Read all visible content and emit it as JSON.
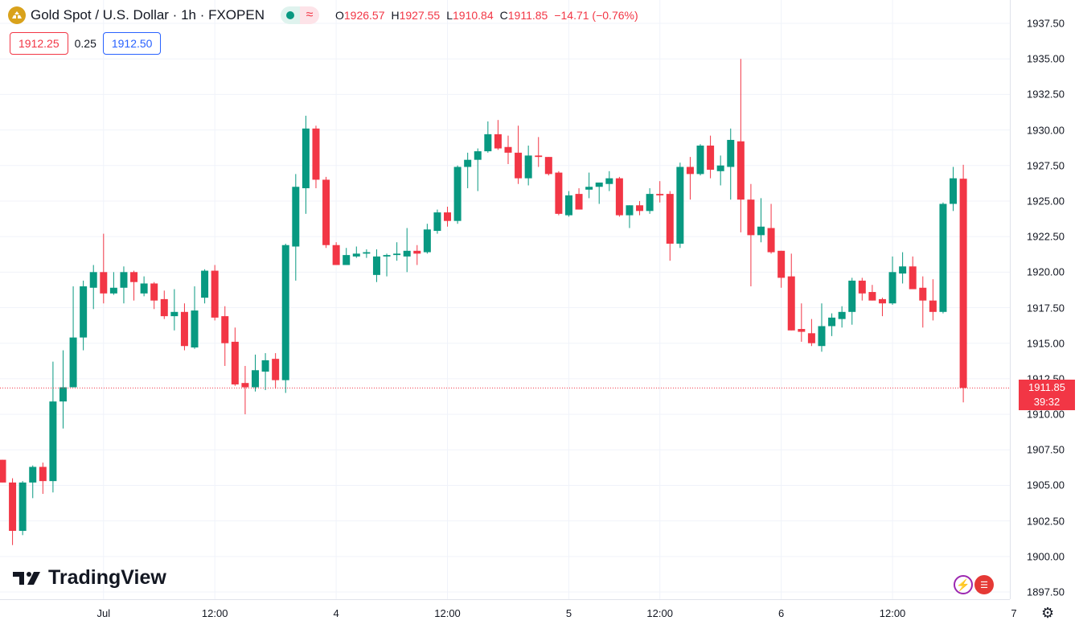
{
  "header": {
    "title": "Gold Spot / U.S. Dollar · 1h · FXOPEN",
    "status_dot_color": "#089981",
    "badge_symbol": "≈",
    "ohlc": {
      "o_label": "O",
      "o": "1926.57",
      "h_label": "H",
      "h": "1927.55",
      "l_label": "L",
      "l": "1910.84",
      "c_label": "C",
      "c": "1911.85",
      "change": "−14.71 (−0.76%)"
    }
  },
  "quote": {
    "bid": "1912.25",
    "spread": "0.25",
    "ask": "1912.50"
  },
  "last_price": {
    "price": "1911.85",
    "countdown": "39:32"
  },
  "brand": {
    "name": "TradingView"
  },
  "colors": {
    "up": "#089981",
    "down": "#f23645",
    "ask": "#2962ff",
    "grid": "#f0f3fa"
  },
  "chart_data": {
    "type": "candlestick",
    "title": "Gold Spot / U.S. Dollar · 1h · FXOPEN",
    "ylim": [
      1897.5,
      1937.5
    ],
    "y_ticks": [
      "1897.50",
      "1900.00",
      "1902.50",
      "1905.00",
      "1907.50",
      "1910.00",
      "1912.50",
      "1915.00",
      "1917.50",
      "1920.00",
      "1922.50",
      "1925.00",
      "1927.50",
      "1930.00",
      "1932.50",
      "1935.00",
      "1937.50"
    ],
    "x_ticks": [
      {
        "label": "Jul",
        "index": 10
      },
      {
        "label": "12:00",
        "index": 21
      },
      {
        "label": "4",
        "index": 33
      },
      {
        "label": "12:00",
        "index": 44
      },
      {
        "label": "5",
        "index": 56
      },
      {
        "label": "12:00",
        "index": 65
      },
      {
        "label": "6",
        "index": 77
      },
      {
        "label": "12:00",
        "index": 88
      },
      {
        "label": "7",
        "index": 100
      }
    ],
    "last_price": 1911.85,
    "candles_ohlc": [
      [
        1906.8,
        1906.8,
        1905.2,
        1905.2
      ],
      [
        1905.2,
        1905.5,
        1900.8,
        1901.8
      ],
      [
        1901.8,
        1905.3,
        1901.5,
        1905.2
      ],
      [
        1905.2,
        1906.4,
        1904.1,
        1906.3
      ],
      [
        1906.3,
        1906.6,
        1904.4,
        1905.3
      ],
      [
        1905.3,
        1913.7,
        1904.5,
        1910.9
      ],
      [
        1910.9,
        1914.5,
        1909.0,
        1911.9
      ],
      [
        1911.9,
        1919.0,
        1911.9,
        1915.4
      ],
      [
        1915.4,
        1919.4,
        1914.5,
        1919.0
      ],
      [
        1918.9,
        1920.5,
        1917.4,
        1920.0
      ],
      [
        1920.0,
        1922.7,
        1917.8,
        1918.5
      ],
      [
        1918.5,
        1920.0,
        1918.4,
        1918.9
      ],
      [
        1918.9,
        1920.4,
        1917.8,
        1920.0
      ],
      [
        1920.0,
        1920.1,
        1918.0,
        1919.3
      ],
      [
        1918.5,
        1919.7,
        1918.3,
        1919.2
      ],
      [
        1919.2,
        1919.3,
        1917.4,
        1918.0
      ],
      [
        1918.1,
        1918.7,
        1916.7,
        1916.9
      ],
      [
        1916.9,
        1918.8,
        1915.9,
        1917.2
      ],
      [
        1917.2,
        1917.8,
        1914.5,
        1914.8
      ],
      [
        1914.7,
        1919.0,
        1914.6,
        1917.3
      ],
      [
        1918.2,
        1920.2,
        1917.8,
        1920.1
      ],
      [
        1920.1,
        1920.5,
        1916.6,
        1916.8
      ],
      [
        1916.9,
        1917.6,
        1913.4,
        1915.0
      ],
      [
        1915.1,
        1916.1,
        1912.0,
        1912.1
      ],
      [
        1912.2,
        1913.4,
        1910.0,
        1911.9
      ],
      [
        1911.9,
        1914.2,
        1911.6,
        1913.1
      ],
      [
        1913.0,
        1914.3,
        1911.7,
        1913.8
      ],
      [
        1913.9,
        1914.3,
        1911.8,
        1912.4
      ],
      [
        1912.4,
        1922.0,
        1911.5,
        1921.9
      ],
      [
        1921.8,
        1926.9,
        1919.4,
        1926.0
      ],
      [
        1925.9,
        1931.0,
        1924.1,
        1930.1
      ],
      [
        1930.1,
        1930.3,
        1925.9,
        1926.5
      ],
      [
        1926.5,
        1926.7,
        1921.7,
        1921.9
      ],
      [
        1921.9,
        1922.1,
        1920.5,
        1920.5
      ],
      [
        1920.5,
        1921.7,
        1920.5,
        1921.2
      ],
      [
        1921.1,
        1921.8,
        1921.0,
        1921.3
      ],
      [
        1921.3,
        1921.6,
        1921.0,
        1921.4
      ],
      [
        1919.8,
        1921.6,
        1919.3,
        1921.1
      ],
      [
        1921.1,
        1921.3,
        1919.7,
        1921.2
      ],
      [
        1921.2,
        1922.1,
        1920.8,
        1921.3
      ],
      [
        1921.1,
        1923.1,
        1920.0,
        1921.5
      ],
      [
        1921.5,
        1921.9,
        1920.5,
        1921.3
      ],
      [
        1921.4,
        1923.4,
        1921.3,
        1923.0
      ],
      [
        1922.9,
        1924.4,
        1922.7,
        1924.2
      ],
      [
        1924.2,
        1924.6,
        1923.2,
        1923.6
      ],
      [
        1923.6,
        1927.5,
        1923.4,
        1927.4
      ],
      [
        1927.4,
        1928.4,
        1925.9,
        1927.9
      ],
      [
        1927.9,
        1928.7,
        1925.7,
        1928.5
      ],
      [
        1928.5,
        1930.6,
        1928.4,
        1929.7
      ],
      [
        1929.7,
        1930.7,
        1928.6,
        1928.7
      ],
      [
        1928.8,
        1929.6,
        1927.6,
        1928.4
      ],
      [
        1928.4,
        1930.3,
        1926.2,
        1926.6
      ],
      [
        1926.6,
        1928.9,
        1926.1,
        1928.2
      ],
      [
        1928.2,
        1929.5,
        1927.4,
        1928.1
      ],
      [
        1928.1,
        1928.1,
        1926.8,
        1926.9
      ],
      [
        1927.0,
        1927.1,
        1924.0,
        1924.1
      ],
      [
        1924.0,
        1925.7,
        1923.9,
        1925.4
      ],
      [
        1925.5,
        1925.9,
        1924.4,
        1924.4
      ],
      [
        1925.8,
        1927.0,
        1925.2,
        1926.0
      ],
      [
        1926.0,
        1926.3,
        1924.8,
        1926.3
      ],
      [
        1926.2,
        1927.1,
        1925.7,
        1926.6
      ],
      [
        1926.6,
        1926.7,
        1923.9,
        1924.0
      ],
      [
        1924.0,
        1924.7,
        1923.1,
        1924.7
      ],
      [
        1924.7,
        1925.0,
        1924.0,
        1924.3
      ],
      [
        1924.3,
        1925.9,
        1924.1,
        1925.5
      ],
      [
        1925.5,
        1926.4,
        1924.9,
        1925.4
      ],
      [
        1925.5,
        1925.7,
        1920.8,
        1922.0
      ],
      [
        1922.0,
        1927.7,
        1921.7,
        1927.4
      ],
      [
        1927.4,
        1928.1,
        1925.1,
        1926.9
      ],
      [
        1926.9,
        1929.0,
        1926.8,
        1928.9
      ],
      [
        1928.9,
        1929.6,
        1926.6,
        1927.2
      ],
      [
        1927.1,
        1928.2,
        1926.1,
        1927.5
      ],
      [
        1927.4,
        1930.1,
        1925.1,
        1929.3
      ],
      [
        1929.2,
        1935.0,
        1922.8,
        1925.1
      ],
      [
        1925.1,
        1926.2,
        1919.0,
        1922.6
      ],
      [
        1922.6,
        1925.2,
        1922.1,
        1923.2
      ],
      [
        1923.1,
        1924.8,
        1921.3,
        1921.4
      ],
      [
        1921.5,
        1921.5,
        1918.9,
        1919.6
      ],
      [
        1919.7,
        1921.3,
        1915.9,
        1915.9
      ],
      [
        1916.0,
        1917.8,
        1915.1,
        1915.8
      ],
      [
        1915.7,
        1916.7,
        1914.8,
        1915.0
      ],
      [
        1914.8,
        1917.8,
        1914.4,
        1916.2
      ],
      [
        1916.2,
        1917.1,
        1915.5,
        1916.8
      ],
      [
        1916.7,
        1917.6,
        1916.1,
        1917.2
      ],
      [
        1917.2,
        1919.6,
        1916.3,
        1919.4
      ],
      [
        1919.4,
        1919.6,
        1918.0,
        1918.5
      ],
      [
        1918.6,
        1919.1,
        1918.0,
        1918.0
      ],
      [
        1918.1,
        1918.2,
        1916.9,
        1917.8
      ],
      [
        1917.8,
        1921.1,
        1917.7,
        1920.0
      ],
      [
        1919.9,
        1921.4,
        1919.2,
        1920.4
      ],
      [
        1920.4,
        1921.1,
        1918.8,
        1918.8
      ],
      [
        1918.9,
        1919.7,
        1916.1,
        1918.0
      ],
      [
        1918.0,
        1919.5,
        1916.6,
        1917.2
      ],
      [
        1917.2,
        1924.9,
        1917.1,
        1924.8
      ],
      [
        1924.8,
        1927.4,
        1924.3,
        1926.6
      ],
      [
        1926.57,
        1927.55,
        1910.84,
        1911.85
      ]
    ]
  }
}
